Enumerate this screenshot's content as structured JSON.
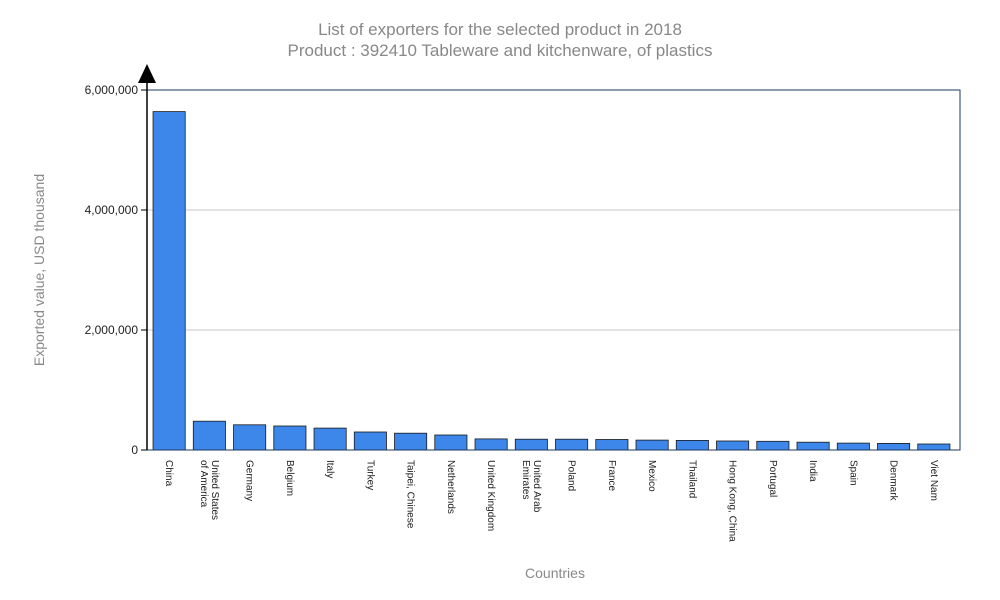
{
  "chart_data": {
    "type": "bar",
    "title": "List of exporters for the selected product in 2018",
    "subtitle": "Product : 392410 Tableware and kitchenware, of plastics",
    "xlabel": "Countries",
    "ylabel": "Exported value, USD thousand",
    "ylim": [
      0,
      6000000
    ],
    "yticks": [
      0,
      2000000,
      4000000,
      6000000
    ],
    "ytick_labels": [
      "0",
      "2,000,000",
      "4,000,000",
      "6,000,000"
    ],
    "grid": true,
    "categories": [
      [
        "China"
      ],
      [
        "United States",
        "of America"
      ],
      [
        "Germany"
      ],
      [
        "Belgium"
      ],
      [
        "Italy"
      ],
      [
        "Turkey"
      ],
      [
        "Taipei, Chinese"
      ],
      [
        "Netherlands"
      ],
      [
        "United Kingdom"
      ],
      [
        "United Arab",
        "Emirates"
      ],
      [
        "Poland"
      ],
      [
        "France"
      ],
      [
        "Mexico"
      ],
      [
        "Thailand"
      ],
      [
        "Hong Kong, China"
      ],
      [
        "Portugal"
      ],
      [
        "India"
      ],
      [
        "Spain"
      ],
      [
        "Denmark"
      ],
      [
        "Viet Nam"
      ]
    ],
    "values": [
      5640000,
      480000,
      420000,
      400000,
      365000,
      300000,
      280000,
      250000,
      185000,
      180000,
      180000,
      175000,
      165000,
      160000,
      150000,
      145000,
      130000,
      115000,
      110000,
      100000
    ],
    "colors": {
      "bar": "#3d86ea",
      "bar_stroke": "#1a1a1a",
      "grid": "#c8c8c8",
      "axis": "#1a3a5c",
      "text_muted": "#888888"
    }
  }
}
